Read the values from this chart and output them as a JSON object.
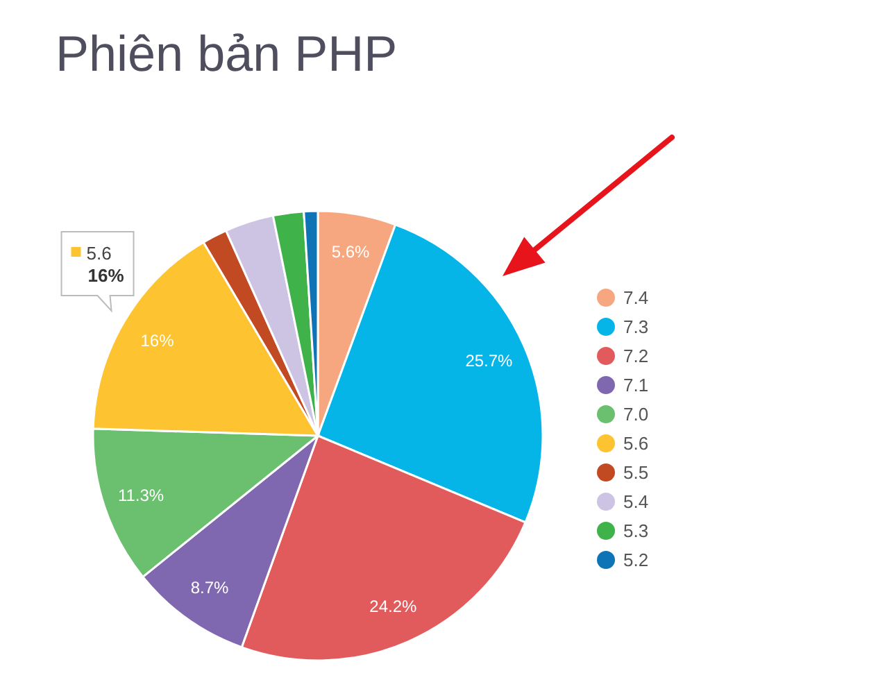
{
  "chart_data": {
    "type": "pie",
    "title": "Phiên bản PHP",
    "categories": [
      "7.4",
      "7.3",
      "7.2",
      "7.1",
      "7.0",
      "5.6",
      "5.5",
      "5.4",
      "5.3",
      "5.2"
    ],
    "values": [
      5.6,
      25.7,
      24.2,
      8.7,
      11.3,
      16,
      1.8,
      3.5,
      2.2,
      1.0
    ],
    "colors": [
      "#f7a77f",
      "#05b5e8",
      "#e25b5c",
      "#8068b0",
      "#6bc06f",
      "#fdc330",
      "#c24a22",
      "#cdc4e3",
      "#40b24a",
      "#0f74b5"
    ],
    "value_labels": [
      "5.6%",
      "25.7%",
      "24.2%",
      "8.7%",
      "11.3%",
      "16%",
      null,
      null,
      null,
      null
    ],
    "legend": "right",
    "annotations": [
      {
        "text": "5.6\n16%",
        "x": "5.6"
      }
    ]
  }
}
